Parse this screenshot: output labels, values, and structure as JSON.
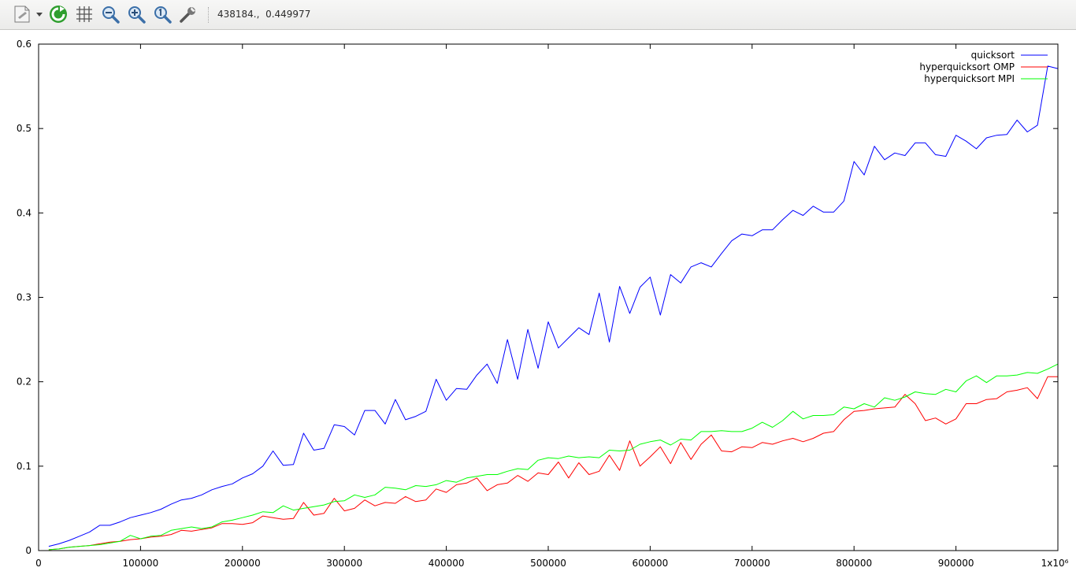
{
  "toolbar": {
    "coordinate_readout": "438184.,  0.449977",
    "buttons": [
      "export-icon",
      "dropdown-arrow-icon",
      "replot-icon",
      "grid-icon",
      "zoom-out-icon",
      "zoom-in-icon",
      "zoom-reset-icon",
      "settings-wrench-icon"
    ]
  },
  "chart_data": {
    "type": "line",
    "title": "",
    "xlabel": "",
    "ylabel": "",
    "xlim": [
      0,
      1000000
    ],
    "ylim": [
      0,
      0.6
    ],
    "x_ticks": [
      "0",
      "100000",
      "200000",
      "300000",
      "400000",
      "500000",
      "600000",
      "700000",
      "800000",
      "900000",
      "1x10⁶"
    ],
    "y_ticks": [
      "0",
      "0.1",
      "0.2",
      "0.3",
      "0.4",
      "0.5",
      "0.6"
    ],
    "grid": false,
    "legend_position": "top-right",
    "x": [
      10000,
      20000,
      30000,
      40000,
      50000,
      60000,
      70000,
      80000,
      90000,
      100000,
      110000,
      120000,
      130000,
      140000,
      150000,
      160000,
      170000,
      180000,
      190000,
      200000,
      210000,
      220000,
      230000,
      240000,
      250000,
      260000,
      270000,
      280000,
      290000,
      300000,
      310000,
      320000,
      330000,
      340000,
      350000,
      360000,
      370000,
      380000,
      390000,
      400000,
      410000,
      420000,
      430000,
      440000,
      450000,
      460000,
      470000,
      480000,
      490000,
      500000,
      510000,
      520000,
      530000,
      540000,
      550000,
      560000,
      570000,
      580000,
      590000,
      600000,
      610000,
      620000,
      630000,
      640000,
      650000,
      660000,
      670000,
      680000,
      690000,
      700000,
      710000,
      720000,
      730000,
      740000,
      750000,
      760000,
      770000,
      780000,
      790000,
      800000,
      810000,
      820000,
      830000,
      840000,
      850000,
      860000,
      870000,
      880000,
      890000,
      900000,
      910000,
      920000,
      930000,
      940000,
      950000,
      960000,
      970000,
      980000,
      990000,
      1000000
    ],
    "series": [
      {
        "name": "quicksort",
        "color": "#0000ff",
        "values": [
          0.005,
          0.008,
          0.012,
          0.017,
          0.022,
          0.03,
          0.03,
          0.034,
          0.039,
          0.042,
          0.045,
          0.049,
          0.055,
          0.06,
          0.062,
          0.066,
          0.072,
          0.076,
          0.079,
          0.086,
          0.091,
          0.1,
          0.118,
          0.101,
          0.102,
          0.139,
          0.119,
          0.121,
          0.149,
          0.147,
          0.137,
          0.166,
          0.166,
          0.15,
          0.179,
          0.155,
          0.159,
          0.165,
          0.203,
          0.178,
          0.192,
          0.191,
          0.208,
          0.221,
          0.198,
          0.25,
          0.203,
          0.262,
          0.216,
          0.271,
          0.24,
          0.252,
          0.264,
          0.256,
          0.305,
          0.247,
          0.313,
          0.281,
          0.312,
          0.324,
          0.279,
          0.327,
          0.317,
          0.336,
          0.341,
          0.336,
          0.352,
          0.367,
          0.375,
          0.373,
          0.38,
          0.38,
          0.392,
          0.403,
          0.397,
          0.408,
          0.401,
          0.401,
          0.414,
          0.461,
          0.445,
          0.479,
          0.463,
          0.471,
          0.468,
          0.483,
          0.483,
          0.469,
          0.467,
          0.492,
          0.485,
          0.476,
          0.489,
          0.492,
          0.493,
          0.51,
          0.496,
          0.504,
          0.574,
          0.571
        ]
      },
      {
        "name": "hyperquicksort OMP",
        "color": "#ff0000",
        "values": [
          0.001,
          0.002,
          0.004,
          0.005,
          0.006,
          0.008,
          0.01,
          0.011,
          0.013,
          0.014,
          0.016,
          0.017,
          0.019,
          0.024,
          0.023,
          0.025,
          0.027,
          0.032,
          0.032,
          0.031,
          0.033,
          0.041,
          0.039,
          0.037,
          0.038,
          0.057,
          0.042,
          0.044,
          0.062,
          0.047,
          0.05,
          0.06,
          0.053,
          0.057,
          0.056,
          0.064,
          0.058,
          0.06,
          0.073,
          0.069,
          0.078,
          0.08,
          0.086,
          0.071,
          0.078,
          0.08,
          0.089,
          0.082,
          0.092,
          0.09,
          0.105,
          0.086,
          0.104,
          0.09,
          0.094,
          0.113,
          0.095,
          0.13,
          0.1,
          0.111,
          0.123,
          0.103,
          0.128,
          0.108,
          0.126,
          0.137,
          0.118,
          0.117,
          0.123,
          0.122,
          0.128,
          0.126,
          0.13,
          0.133,
          0.129,
          0.133,
          0.139,
          0.141,
          0.155,
          0.165,
          0.166,
          0.168,
          0.169,
          0.17,
          0.185,
          0.174,
          0.154,
          0.157,
          0.15,
          0.156,
          0.174,
          0.174,
          0.179,
          0.18,
          0.188,
          0.19,
          0.193,
          0.18,
          0.206,
          0.206
        ]
      },
      {
        "name": "hyperquicksort MPI",
        "color": "#00ff00",
        "values": [
          0.001,
          0.002,
          0.004,
          0.005,
          0.006,
          0.007,
          0.009,
          0.011,
          0.018,
          0.014,
          0.017,
          0.018,
          0.024,
          0.026,
          0.028,
          0.026,
          0.028,
          0.034,
          0.036,
          0.039,
          0.042,
          0.046,
          0.045,
          0.053,
          0.048,
          0.05,
          0.052,
          0.054,
          0.058,
          0.059,
          0.066,
          0.063,
          0.066,
          0.075,
          0.074,
          0.072,
          0.077,
          0.076,
          0.078,
          0.083,
          0.081,
          0.086,
          0.088,
          0.09,
          0.09,
          0.094,
          0.097,
          0.096,
          0.107,
          0.11,
          0.109,
          0.112,
          0.11,
          0.111,
          0.11,
          0.119,
          0.118,
          0.119,
          0.126,
          0.129,
          0.131,
          0.125,
          0.132,
          0.131,
          0.141,
          0.141,
          0.142,
          0.141,
          0.141,
          0.145,
          0.152,
          0.146,
          0.154,
          0.165,
          0.156,
          0.16,
          0.16,
          0.161,
          0.17,
          0.168,
          0.174,
          0.17,
          0.181,
          0.178,
          0.182,
          0.188,
          0.186,
          0.185,
          0.191,
          0.188,
          0.201,
          0.207,
          0.199,
          0.207,
          0.207,
          0.208,
          0.211,
          0.21,
          0.215,
          0.221
        ]
      }
    ]
  }
}
